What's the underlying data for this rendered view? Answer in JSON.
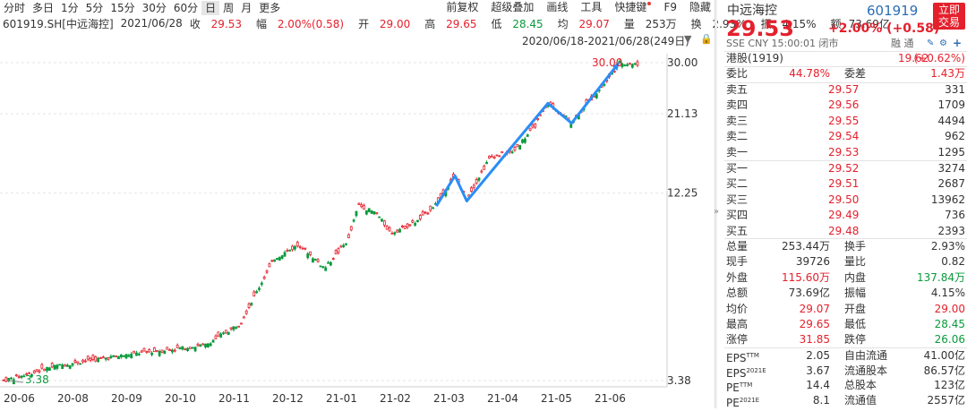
{
  "toolbar": {
    "periods": [
      "分时",
      "多日",
      "1分",
      "5分",
      "15分",
      "30分",
      "60分",
      "日",
      "周",
      "月",
      "更多"
    ],
    "active_period": "日",
    "tools": [
      "前复权",
      "超级叠加",
      "画线",
      "工具",
      "快捷键",
      "F9",
      "隐藏"
    ]
  },
  "info": {
    "code": "601919.SH[中远海控]",
    "date": "2021/06/28",
    "close_label": "收",
    "close": "29.53",
    "change_label": "幅",
    "change": "2.00%(0.58)",
    "open_label": "开",
    "open": "29.00",
    "high_label": "高",
    "high": "29.65",
    "low_label": "低",
    "low": "28.45",
    "avg_label": "均",
    "avg": "29.07",
    "volume_label": "量",
    "volume": "253万",
    "turnover_label": "换",
    "turnover": "2.93%",
    "amplitude_label": "振",
    "amplitude": "4.15%",
    "amount_label": "额",
    "amount": "73.69亿"
  },
  "range": {
    "text": "2020/06/18-2021/06/28(249日)",
    "icons": [
      "dropdown-icon",
      "lock-icon"
    ]
  },
  "chart_data": {
    "type": "candlestick",
    "scale": "log",
    "ylim": [
      3.3,
      31.0
    ],
    "y_ticks": [
      "30.00",
      "21.13",
      "12.25",
      "3.38"
    ],
    "x_ticks": [
      "20-06",
      "20-08",
      "20-09",
      "20-10",
      "20-11",
      "20-12",
      "21-01",
      "21-02",
      "21-03",
      "21-04",
      "21-05",
      "21-06"
    ],
    "annotations": {
      "max": "30.00",
      "min": "3.38"
    },
    "up_color": "#e4202c",
    "down_color": "#0a9a3c",
    "trend_color": "#2a8ef6",
    "trend_points": [
      {
        "date": "2021-03-01",
        "y": 11.2
      },
      {
        "date": "2021-03-12",
        "y": 13.8
      },
      {
        "date": "2021-03-19",
        "y": 11.6
      },
      {
        "date": "2021-05-06",
        "y": 22.7
      },
      {
        "date": "2021-05-20",
        "y": 19.8
      },
      {
        "date": "2021-06-17",
        "y": 30.0
      }
    ],
    "price_path": [
      {
        "date": "2020-06-18",
        "y": 3.38
      },
      {
        "date": "2020-06-30",
        "y": 3.5
      },
      {
        "date": "2020-07-15",
        "y": 3.7
      },
      {
        "date": "2020-08-10",
        "y": 3.9
      },
      {
        "date": "2020-09-10",
        "y": 4.1
      },
      {
        "date": "2020-10-15",
        "y": 4.3
      },
      {
        "date": "2020-11-05",
        "y": 5.0
      },
      {
        "date": "2020-11-25",
        "y": 7.8
      },
      {
        "date": "2020-12-10",
        "y": 8.6
      },
      {
        "date": "2020-12-25",
        "y": 7.3
      },
      {
        "date": "2021-01-08",
        "y": 8.9
      },
      {
        "date": "2021-01-14",
        "y": 11.3
      },
      {
        "date": "2021-01-25",
        "y": 10.6
      },
      {
        "date": "2021-02-02",
        "y": 9.3
      },
      {
        "date": "2021-02-18",
        "y": 10.1
      },
      {
        "date": "2021-03-01",
        "y": 11.4
      },
      {
        "date": "2021-03-12",
        "y": 13.7
      },
      {
        "date": "2021-03-19",
        "y": 11.8
      },
      {
        "date": "2021-04-02",
        "y": 15.7
      },
      {
        "date": "2021-04-15",
        "y": 16.2
      },
      {
        "date": "2021-04-28",
        "y": 19.3
      },
      {
        "date": "2021-05-06",
        "y": 22.6
      },
      {
        "date": "2021-05-20",
        "y": 20.0
      },
      {
        "date": "2021-06-01",
        "y": 23.5
      },
      {
        "date": "2021-06-10",
        "y": 26.5
      },
      {
        "date": "2021-06-17",
        "y": 30.0
      },
      {
        "date": "2021-06-28",
        "y": 29.53
      }
    ]
  },
  "panel": {
    "name": "中远海控",
    "code": "601919",
    "price": "29.53",
    "change": "+2.00% (+0.58)",
    "meta": "SSE  CNY  15:00:01  闭市",
    "meta_right": "融  通",
    "trade_btn": [
      "立即",
      "交易"
    ],
    "hk_label": "港股(1919)",
    "hk_price": "19.62",
    "hk_change": "(+0.62%)",
    "weibi_label": "委比",
    "weibi": "44.78%",
    "weicha_label": "委差",
    "weicha": "1.43万",
    "asks": [
      {
        "label": "卖五",
        "price": "29.57",
        "vol": "331"
      },
      {
        "label": "卖四",
        "price": "29.56",
        "vol": "1709"
      },
      {
        "label": "卖三",
        "price": "29.55",
        "vol": "4494"
      },
      {
        "label": "卖二",
        "price": "29.54",
        "vol": "962"
      },
      {
        "label": "卖一",
        "price": "29.53",
        "vol": "1295"
      }
    ],
    "bids": [
      {
        "label": "买一",
        "price": "29.52",
        "vol": "3274"
      },
      {
        "label": "买二",
        "price": "29.51",
        "vol": "2687"
      },
      {
        "label": "买三",
        "price": "29.50",
        "vol": "13962"
      },
      {
        "label": "买四",
        "price": "29.49",
        "vol": "736"
      },
      {
        "label": "买五",
        "price": "29.48",
        "vol": "2393"
      }
    ],
    "stats": [
      {
        "l1": "总量",
        "v1": "253.44万",
        "c1": "",
        "l2": "换手",
        "v2": "2.93%",
        "c2": ""
      },
      {
        "l1": "现手",
        "v1": "39726",
        "c1": "",
        "l2": "量比",
        "v2": "0.82",
        "c2": ""
      },
      {
        "l1": "外盘",
        "v1": "115.60万",
        "c1": "red",
        "l2": "内盘",
        "v2": "137.84万",
        "c2": "green"
      },
      {
        "l1": "总额",
        "v1": "73.69亿",
        "c1": "",
        "l2": "振幅",
        "v2": "4.15%",
        "c2": ""
      },
      {
        "l1": "均价",
        "v1": "29.07",
        "c1": "red",
        "l2": "开盘",
        "v2": "29.00",
        "c2": "red"
      },
      {
        "l1": "最高",
        "v1": "29.65",
        "c1": "red",
        "l2": "最低",
        "v2": "28.45",
        "c2": "green"
      },
      {
        "l1": "涨停",
        "v1": "31.85",
        "c1": "red",
        "l2": "跌停",
        "v2": "26.06",
        "c2": "green"
      }
    ],
    "fundamentals": [
      {
        "l1": "EPS",
        "s1": "TTM",
        "v1": "2.05",
        "l2": "自由流通",
        "v2": "41.00亿"
      },
      {
        "l1": "EPS",
        "s1": "2021E",
        "v1": "3.67",
        "l2": "流通股本",
        "v2": "86.57亿"
      },
      {
        "l1": "PE",
        "s1": "TTM",
        "v1": "14.4",
        "l2": "总股本",
        "v2": "123亿"
      },
      {
        "l1": "PE",
        "s1": "2021E",
        "v1": "8.1",
        "l2": "流通值",
        "v2": "2557亿"
      }
    ]
  }
}
